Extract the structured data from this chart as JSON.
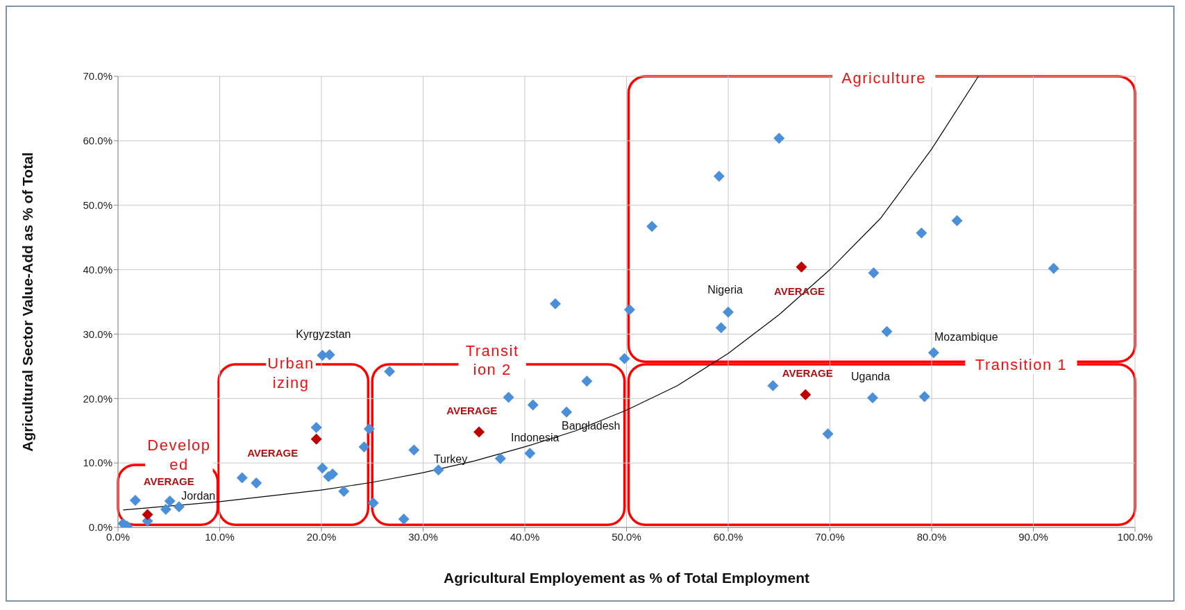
{
  "chart_data": {
    "type": "scatter",
    "xlabel": "Agricultural Employement as % of Total Employment",
    "ylabel": "Agricultural Sector Value-Add as % of Total",
    "xlim": [
      0,
      100
    ],
    "xticks": [
      {
        "value": 0,
        "label": "0.0%"
      },
      {
        "value": 10,
        "label": "10.0%"
      },
      {
        "value": 20,
        "label": "20.0%"
      },
      {
        "value": 30,
        "label": "30.0%"
      },
      {
        "value": 40,
        "label": "40.0%"
      },
      {
        "value": 50,
        "label": "50.0%"
      },
      {
        "value": 60,
        "label": "60.0%"
      },
      {
        "value": 70,
        "label": "70.0%"
      },
      {
        "value": 80,
        "label": "80.0%"
      },
      {
        "value": 90,
        "label": "90.0%"
      },
      {
        "value": 100,
        "label": "100.0%"
      }
    ],
    "ylim": [
      0,
      70
    ],
    "yticks": [
      {
        "value": 0,
        "label": "0.0%"
      },
      {
        "value": 10,
        "label": "10.0%"
      },
      {
        "value": 20,
        "label": "20.0%"
      },
      {
        "value": 30,
        "label": "30.0%"
      },
      {
        "value": 40,
        "label": "40.0%"
      },
      {
        "value": 50,
        "label": "50.0%"
      },
      {
        "value": 60,
        "label": "60.0%"
      },
      {
        "value": 70,
        "label": "70.0%"
      }
    ],
    "grid": true,
    "marker": "diamond",
    "series": [
      {
        "type": "line",
        "color": "#000000",
        "marker": "none",
        "x": [
          0.5,
          10,
          20,
          25,
          30,
          35,
          40,
          45,
          50,
          55,
          60,
          65,
          70,
          75,
          80,
          84.6
        ],
        "values": [
          2.7,
          4.0,
          5.8,
          7.0,
          8.5,
          10.3,
          12.5,
          15.0,
          18.2,
          22.0,
          27.0,
          33.0,
          40.0,
          48.0,
          58.7,
          70.0
        ]
      },
      {
        "type": "scatter",
        "color": "#4a8fd8",
        "x": [
          0.5,
          0.9,
          1.7,
          2.9,
          4.7,
          5.1,
          6.0,
          12.2,
          13.6,
          19.5,
          20.1,
          20.1,
          20.7,
          20.8,
          21.1,
          22.2,
          24.2,
          24.7,
          25.1,
          26.7,
          28.1,
          29.1,
          31.5,
          37.6,
          38.4,
          40.5,
          40.8,
          43.0,
          44.1,
          46.1,
          49.8,
          50.3,
          52.5,
          59.1,
          59.3,
          60.0,
          64.4,
          65.0,
          69.8,
          74.2,
          74.3,
          75.6,
          79.0,
          79.3,
          80.2,
          82.5,
          92.0
        ],
        "values": [
          0.6,
          0.2,
          4.2,
          1.0,
          2.8,
          4.1,
          3.2,
          7.7,
          6.9,
          15.5,
          9.2,
          26.7,
          7.9,
          26.8,
          8.3,
          5.6,
          12.5,
          15.3,
          3.8,
          24.2,
          1.3,
          12.0,
          8.9,
          10.7,
          20.2,
          11.5,
          19.0,
          34.7,
          17.9,
          22.7,
          26.2,
          33.8,
          46.7,
          54.5,
          31.0,
          33.4,
          22.0,
          60.4,
          14.5,
          20.1,
          39.5,
          30.4,
          45.7,
          20.3,
          27.1,
          47.6,
          40.2
        ]
      },
      {
        "type": "scatter",
        "color": "#c00000",
        "x": [
          2.9,
          19.5,
          35.5,
          67.2,
          67.6
        ],
        "values": [
          2.0,
          13.7,
          14.8,
          40.4,
          20.6
        ]
      }
    ],
    "annotations": [
      "Develop\ned",
      "Urban\nizing",
      "Transit\nion 2",
      "Transition 1",
      "Agriculture",
      "AVERAGE",
      "AVERAGE",
      "AVERAGE",
      "AVERAGE",
      "AVERAGE",
      "Kyrgyzstan",
      "Jordan",
      "Turkey",
      "Indonesia",
      "Bangladesh",
      "Nigeria",
      "Mozambique",
      "Uganda"
    ]
  }
}
